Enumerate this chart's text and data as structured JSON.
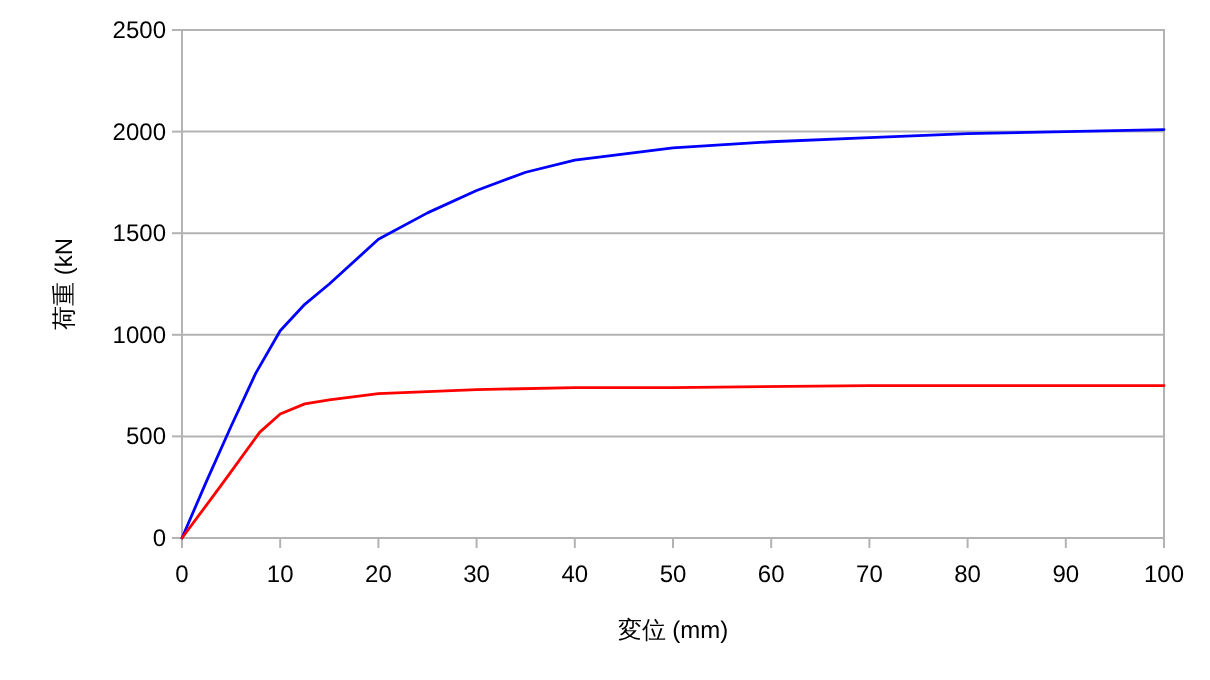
{
  "chart_data": {
    "type": "line",
    "xlabel": "変位 (mm)",
    "ylabel": "荷重 (kN",
    "xlim": [
      0,
      100
    ],
    "xticks": [
      0,
      10,
      20,
      30,
      40,
      50,
      60,
      70,
      80,
      90,
      100
    ],
    "ylim": [
      0,
      2500
    ],
    "yticks": [
      0,
      500,
      1000,
      1500,
      2000,
      2500
    ],
    "grid": "y",
    "marker": "none",
    "line_style": "solid",
    "series": [
      {
        "color": "#0000ff",
        "x": [
          0,
          2.5,
          5,
          7.5,
          10,
          12.5,
          15,
          20,
          25,
          30,
          35,
          40,
          50,
          60,
          70,
          80,
          90,
          100
        ],
        "values": [
          0,
          280,
          550,
          810,
          1020,
          1150,
          1250,
          1470,
          1600,
          1710,
          1800,
          1860,
          1920,
          1950,
          1970,
          1990,
          2000,
          2010
        ]
      },
      {
        "color": "#ff0000",
        "x": [
          0,
          4,
          7.9,
          10,
          12.5,
          15,
          20,
          25,
          30,
          40,
          50,
          70,
          100
        ],
        "values": [
          0,
          260,
          520,
          610,
          660,
          680,
          710,
          720,
          730,
          740,
          740,
          750,
          750
        ]
      }
    ]
  }
}
